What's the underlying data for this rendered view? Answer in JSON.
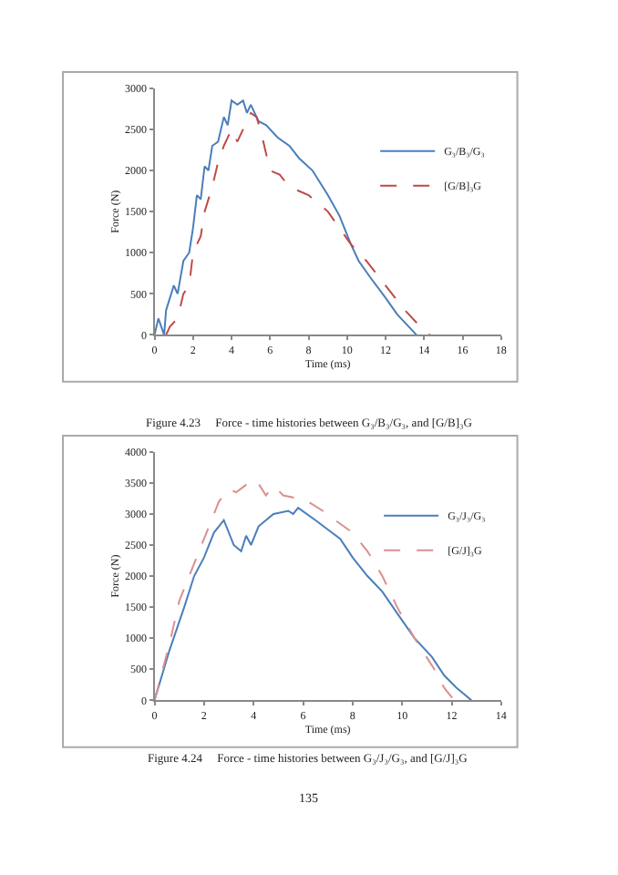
{
  "chart_data": [
    {
      "type": "line",
      "xlabel": "Time (ms)",
      "ylabel": "Force (N)",
      "xlim": [
        0,
        18
      ],
      "xticks": [
        0,
        2,
        4,
        6,
        8,
        10,
        12,
        14,
        16,
        18
      ],
      "ylim": [
        0,
        3000
      ],
      "yticks": [
        0,
        500,
        1000,
        1500,
        2000,
        2500,
        3000
      ],
      "grid": false,
      "legend": "right",
      "marker": "none",
      "annotations": [
        "Figure 4.23     Force - time histories between G₃/B₃/G₃, and [G/B]₃G"
      ],
      "series": [
        {
          "name": "G₃/B₃/G₃",
          "color": "#4a7ebb",
          "line_style": "solid",
          "x": [
            0,
            0.2,
            0.5,
            0.6,
            1.0,
            1.2,
            1.5,
            1.8,
            2.0,
            2.2,
            2.4,
            2.6,
            2.8,
            3.0,
            3.3,
            3.6,
            3.8,
            4.0,
            4.3,
            4.6,
            4.8,
            5.0,
            5.4,
            5.8,
            6.4,
            7.0,
            7.5,
            8.2,
            8.6,
            9.0,
            9.6,
            10.2,
            10.6,
            11.2,
            12.0,
            12.6,
            13.2,
            13.6
          ],
          "values": [
            0,
            200,
            0,
            300,
            600,
            500,
            900,
            1000,
            1300,
            1700,
            1650,
            2050,
            2000,
            2300,
            2350,
            2650,
            2550,
            2850,
            2800,
            2850,
            2700,
            2800,
            2600,
            2550,
            2400,
            2300,
            2150,
            2000,
            1850,
            1700,
            1450,
            1100,
            900,
            700,
            450,
            250,
            100,
            0
          ]
        },
        {
          "name": "[G/B]₃G",
          "color": "#be4b48",
          "line_style": "dashed",
          "x": [
            0.6,
            0.8,
            1.2,
            1.5,
            1.8,
            2.0,
            2.4,
            2.6,
            3.0,
            3.3,
            3.6,
            4.0,
            4.3,
            4.6,
            5.0,
            5.3,
            5.6,
            6.0,
            6.5,
            7.0,
            8.0,
            9.0,
            9.6,
            10.2,
            11.0,
            12.0,
            13.0,
            13.8,
            14.3
          ],
          "values": [
            0,
            100,
            200,
            500,
            600,
            1000,
            1200,
            1500,
            1800,
            2100,
            2300,
            2500,
            2350,
            2500,
            2700,
            2650,
            2400,
            2000,
            1950,
            1800,
            1700,
            1500,
            1300,
            1100,
            900,
            600,
            300,
            100,
            0
          ]
        }
      ]
    },
    {
      "type": "line",
      "xlabel": "Time (ms)",
      "ylabel": "Force (N)",
      "xlim": [
        0,
        14
      ],
      "xticks": [
        0,
        2,
        4,
        6,
        8,
        10,
        12,
        14
      ],
      "ylim": [
        0,
        4000
      ],
      "yticks": [
        0,
        500,
        1000,
        1500,
        2000,
        2500,
        3000,
        3500,
        4000
      ],
      "grid": false,
      "legend": "right",
      "marker": "none",
      "annotations": [
        "Figure 4.24     Force - time histories between G₃/J₃/G₃, and [G/J]₃G",
        "135"
      ],
      "series": [
        {
          "name": "G₃/J₃/G₃",
          "color": "#4a7ebb",
          "line_style": "solid",
          "x": [
            0,
            0.6,
            1.2,
            1.6,
            2.0,
            2.4,
            2.8,
            3.2,
            3.5,
            3.7,
            3.9,
            4.2,
            4.8,
            5.4,
            5.6,
            5.8,
            6.5,
            7.0,
            7.5,
            8.0,
            8.6,
            9.2,
            9.8,
            10.5,
            11.2,
            11.7,
            12.2,
            12.8
          ],
          "values": [
            0,
            800,
            1500,
            2000,
            2300,
            2700,
            2900,
            2500,
            2400,
            2650,
            2500,
            2800,
            3000,
            3050,
            3000,
            3100,
            2900,
            2750,
            2600,
            2300,
            2000,
            1750,
            1400,
            1000,
            700,
            400,
            200,
            0
          ]
        },
        {
          "name": "[G/J]₃G",
          "color": "#d9908e",
          "line_style": "dashed",
          "x": [
            0,
            0.6,
            1.0,
            1.6,
            2.2,
            2.6,
            3.0,
            3.3,
            3.8,
            4.1,
            4.5,
            4.8,
            5.2,
            5.8,
            6.2,
            6.8,
            7.3,
            8.0,
            8.6,
            9.2,
            9.8,
            10.5,
            11.3,
            11.7,
            12.1
          ],
          "values": [
            0,
            900,
            1600,
            2200,
            2800,
            3200,
            3400,
            3350,
            3500,
            3550,
            3300,
            3450,
            3300,
            3250,
            3200,
            3050,
            2900,
            2700,
            2400,
            2000,
            1500,
            1000,
            500,
            200,
            0
          ]
        }
      ]
    }
  ]
}
